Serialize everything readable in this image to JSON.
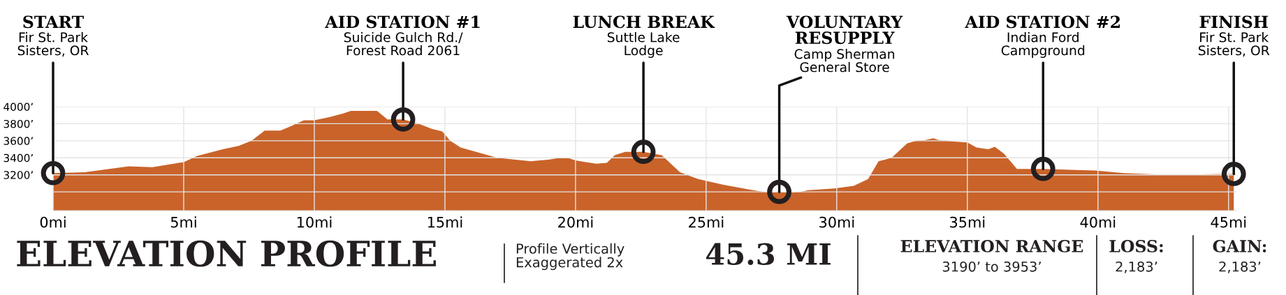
{
  "chart_data": {
    "type": "area",
    "title": "ELEVATION PROFILE",
    "subtitle": "Profile Vertically\nExaggerated 2x",
    "x": [
      0,
      1.2,
      2.9,
      3.8,
      5,
      5.5,
      6.5,
      7.1,
      7.6,
      8.1,
      8.7,
      9.1,
      9.6,
      10,
      10.6,
      11.1,
      11.4,
      12.1,
      12.4,
      12.8,
      13.4,
      14,
      14.5,
      14.9,
      15.2,
      15.6,
      17,
      18.3,
      19,
      19.4,
      19.7,
      20,
      20.4,
      20.8,
      21.2,
      21.5,
      21.9,
      22.6,
      23.3,
      24,
      24.7,
      25.7,
      26.8,
      27.4,
      27.8,
      28.2,
      28.6,
      28.9,
      29.9,
      30.65,
      31.2,
      31.6,
      32.1,
      32.7,
      33.05,
      33.4,
      33.7,
      33.9,
      34.5,
      35,
      35.35,
      35.8,
      36.05,
      36.4,
      36.9,
      37.9,
      39.9,
      41,
      42.7,
      44.7,
      45.2
    ],
    "series": [
      {
        "color": "#c9632a",
        "values": [
          3220,
          3230,
          3300,
          3290,
          3350,
          3420,
          3500,
          3540,
          3600,
          3720,
          3720,
          3770,
          3840,
          3840,
          3880,
          3920,
          3950,
          3950,
          3950,
          3850,
          3850,
          3800,
          3740,
          3710,
          3600,
          3520,
          3400,
          3360,
          3380,
          3400,
          3400,
          3370,
          3350,
          3330,
          3340,
          3430,
          3470,
          3470,
          3430,
          3230,
          3150,
          3080,
          3020,
          2990,
          3000,
          2990,
          3000,
          3020,
          3040,
          3070,
          3150,
          3360,
          3400,
          3570,
          3600,
          3610,
          3630,
          3610,
          3590,
          3580,
          3520,
          3500,
          3530,
          3450,
          3270,
          3270,
          3250,
          3220,
          3200,
          3210,
          3210
        ]
      }
    ],
    "xlim": [
      0,
      45.3
    ],
    "ylim": [
      2780,
      4000
    ],
    "xticks": [
      {
        "value": 0,
        "label": "0mi"
      },
      {
        "value": 5,
        "label": "5mi"
      },
      {
        "value": 10,
        "label": "10mi"
      },
      {
        "value": 15,
        "label": "15mi"
      },
      {
        "value": 20,
        "label": "20mi"
      },
      {
        "value": 25,
        "label": "25mi"
      },
      {
        "value": 30,
        "label": "30mi"
      },
      {
        "value": 35,
        "label": "35mi"
      },
      {
        "value": 40,
        "label": "40mi"
      },
      {
        "value": 45,
        "label": "45mi"
      }
    ],
    "yticks": [
      {
        "value": 3000,
        "label": null
      },
      {
        "value": 3200,
        "label": "3200’"
      },
      {
        "value": 3400,
        "label": "3400’"
      },
      {
        "value": 3600,
        "label": "3600’"
      },
      {
        "value": 3800,
        "label": "3800’"
      },
      {
        "value": 4000,
        "label": "4000’"
      }
    ],
    "grid": true,
    "annotations": [
      {
        "text": "START\nFir St. Park\nSisters, OR",
        "x": 0,
        "y": 3220
      },
      {
        "text": "AID STATION #1\nSuicide Gulch Rd./\nForest Road 2061",
        "x": 13.4,
        "y": 3850
      },
      {
        "text": "LUNCH BREAK\nSuttle Lake\nLodge",
        "x": 22.6,
        "y": 3470
      },
      {
        "text": "VOLUNTARY\nRESUPPLY\nCamp Sherman\nGeneral Store",
        "x": 27.8,
        "y": 3000
      },
      {
        "text": "AID STATION #2\nIndian Ford\nCampground",
        "x": 37.9,
        "y": 3270
      },
      {
        "text": "FINISH\nFir St. Park\nSisters, OR",
        "x": 45.2,
        "y": 3210
      },
      "45.3 MI",
      "ELEVATION RANGE\n3190’ to 3953’",
      "LOSS:\n2,183’",
      "GAIN:\n2,183’"
    ]
  }
}
